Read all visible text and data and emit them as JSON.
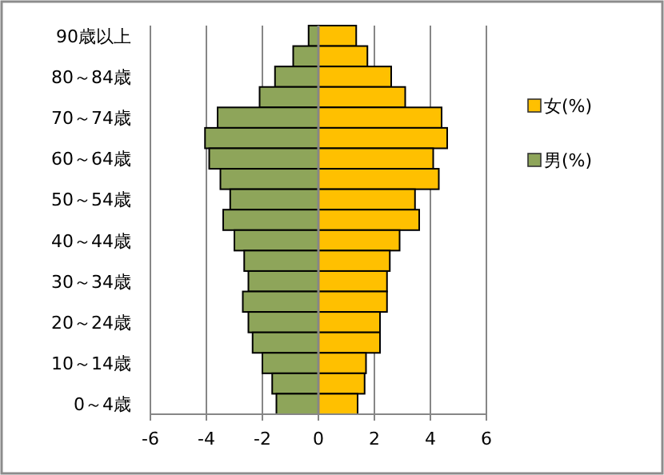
{
  "chart_data": {
    "type": "bar",
    "orientation": "horizontal",
    "stacked": true,
    "categories": [
      "90歳以上",
      null,
      "80～84歳",
      null,
      "70～74歳",
      null,
      "60～64歳",
      null,
      "50～54歳",
      null,
      "40～44歳",
      null,
      "30～34歳",
      null,
      "20～24歳",
      null,
      "10～14歳",
      null,
      "0～4歳"
    ],
    "series": [
      {
        "name": "女(%)",
        "color": "#ffc000",
        "values": [
          1.35,
          1.75,
          2.6,
          3.1,
          4.4,
          4.6,
          4.1,
          4.3,
          3.45,
          3.6,
          2.9,
          2.55,
          2.45,
          2.45,
          2.2,
          2.2,
          1.7,
          1.65,
          1.4
        ]
      },
      {
        "name": "男(%)",
        "color": "#8ea55a",
        "values": [
          -0.35,
          -0.9,
          -1.55,
          -2.1,
          -3.6,
          -4.05,
          -3.9,
          -3.5,
          -3.15,
          -3.4,
          -3.0,
          -2.65,
          -2.5,
          -2.7,
          -2.5,
          -2.35,
          -2.0,
          -1.65,
          -1.5
        ]
      }
    ],
    "xlim": [
      -6,
      6
    ],
    "xticks": [
      -6,
      -4,
      -2,
      0,
      2,
      4,
      6
    ],
    "grid": "x",
    "legend": "right"
  }
}
